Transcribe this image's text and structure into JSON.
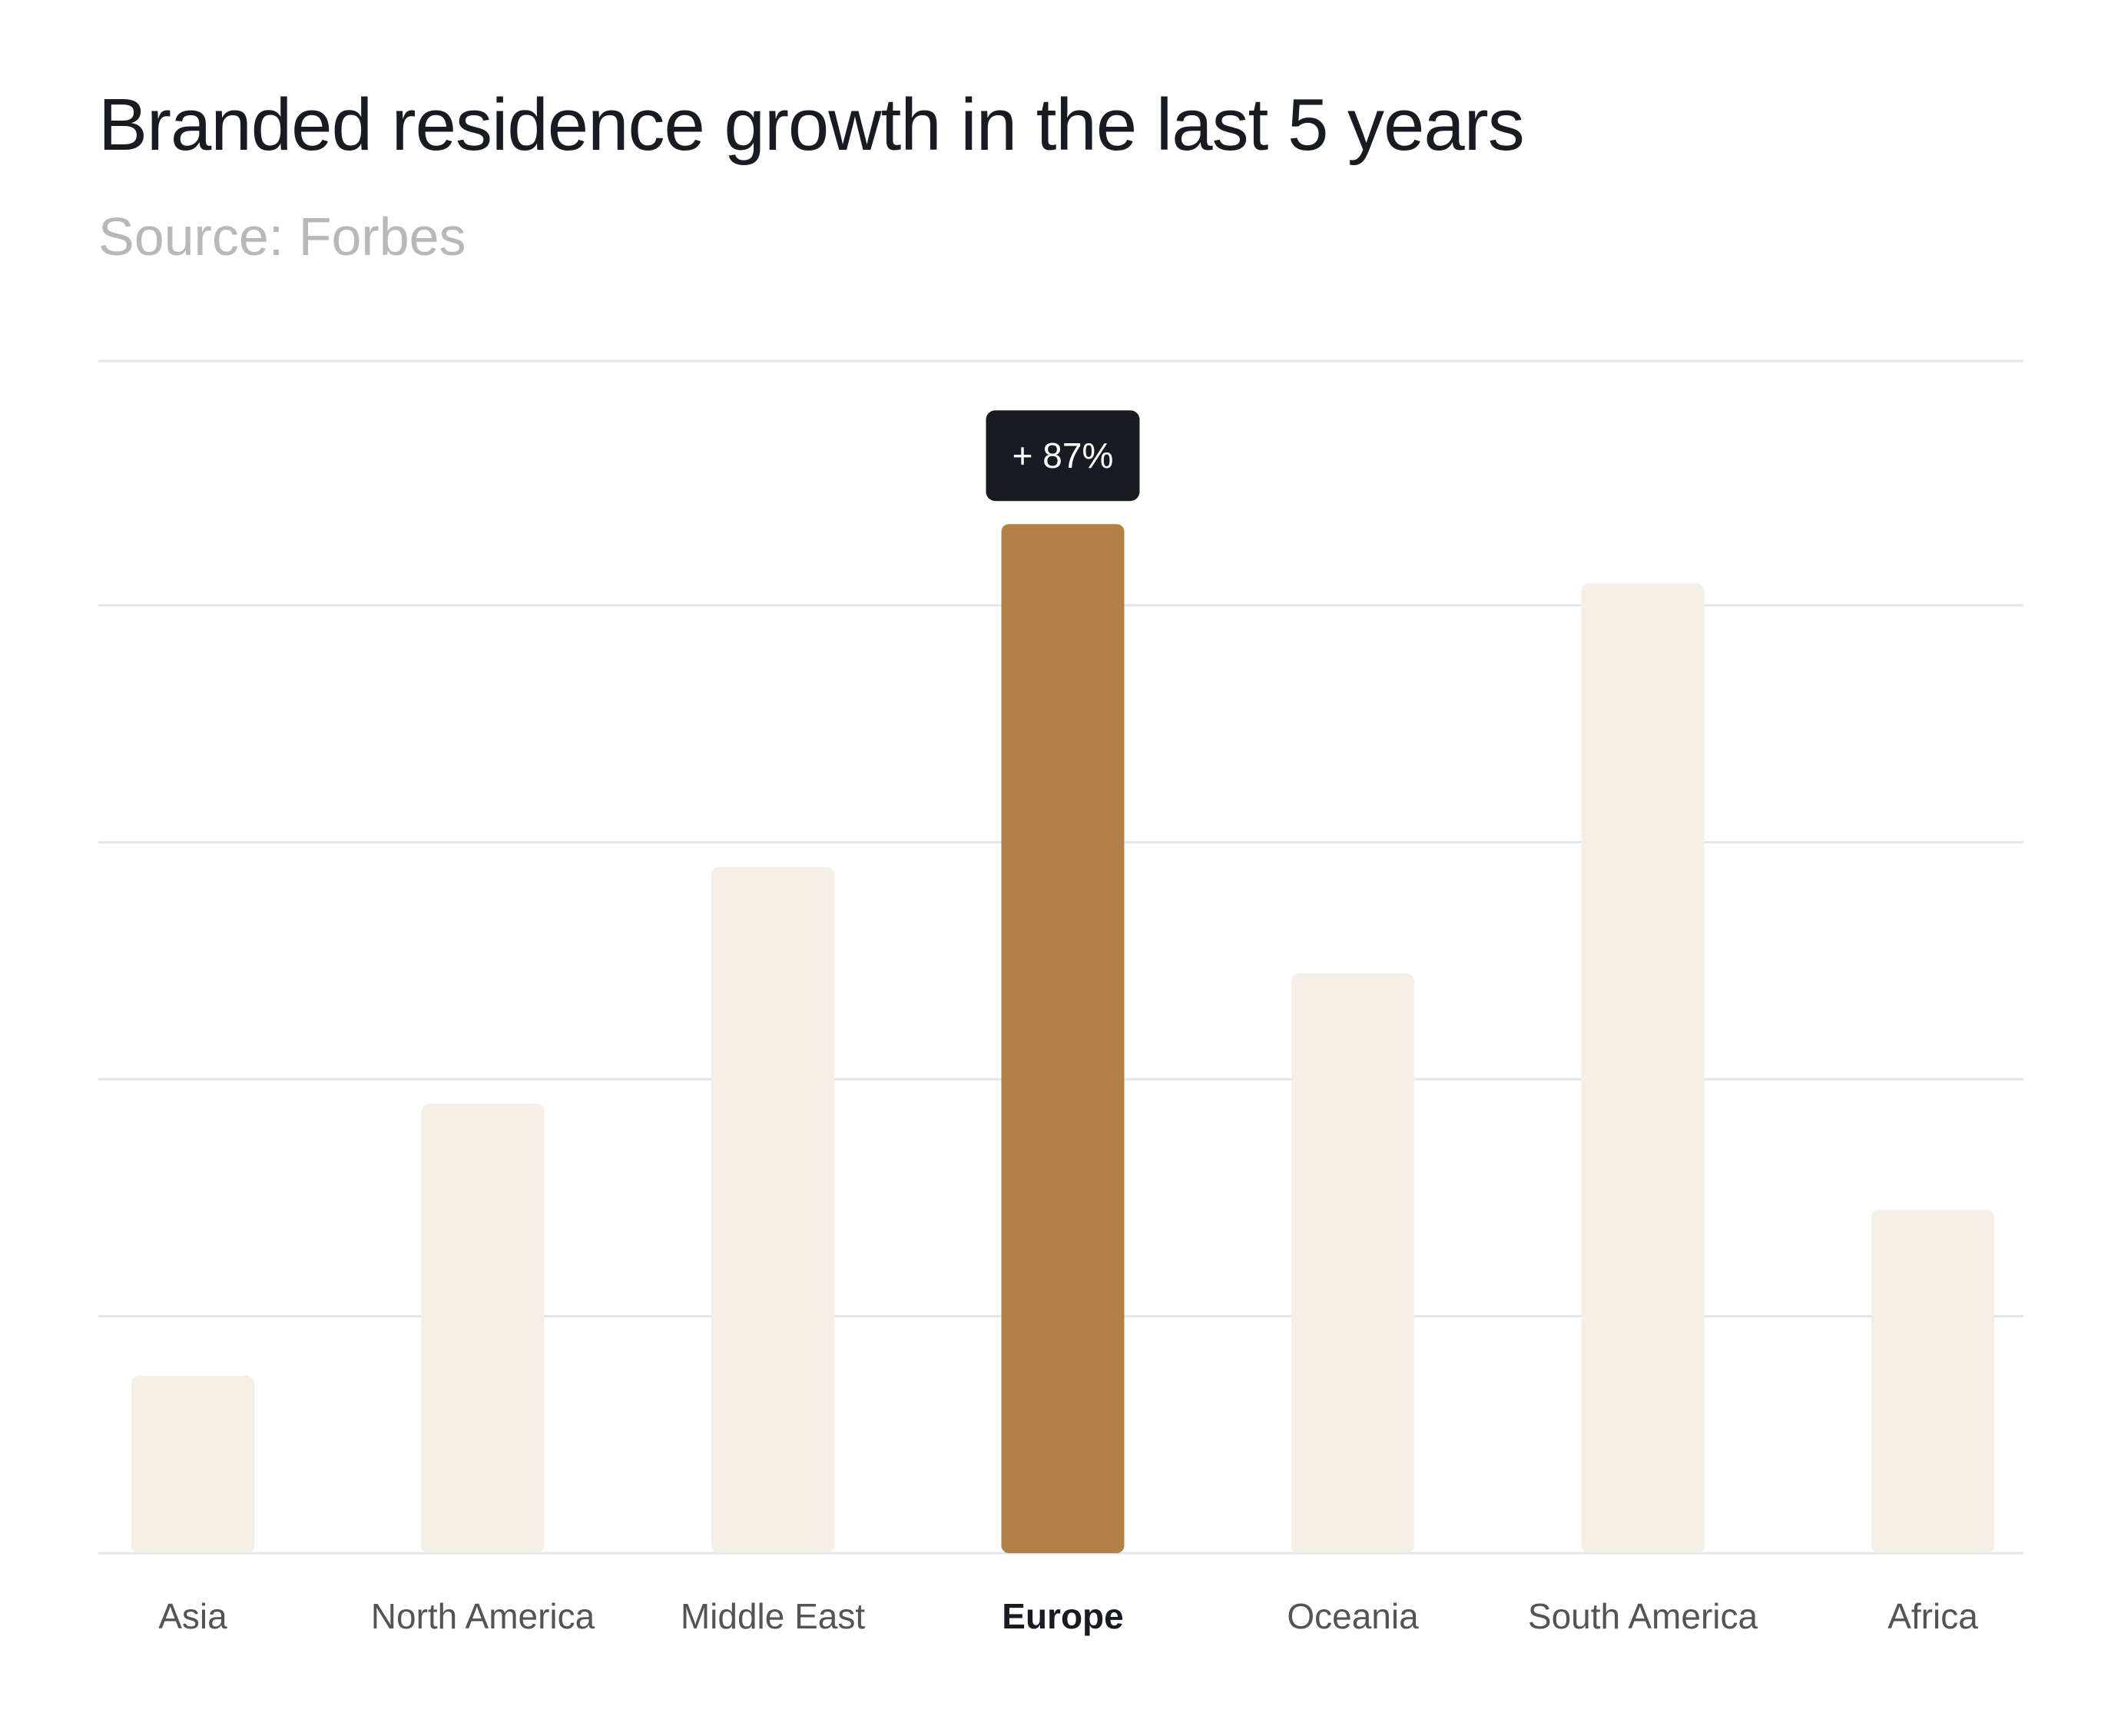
{
  "title": "Branded residence growth in the last 5 years",
  "subtitle": "Source: Forbes",
  "colors": {
    "highlight_bar": "#b3804a",
    "default_bar": "#f5eee7",
    "gridline": "#e3e6ee",
    "tooltip_bg": "#181c22",
    "tooltip_text": "#ffffff",
    "label_text": "#545454",
    "label_text_highlight": "#181c22"
  },
  "chart_data": {
    "type": "bar",
    "title": "Branded residence growth in the last 5 years",
    "subtitle": "Source: Forbes",
    "xlabel": "",
    "ylabel": "",
    "categories": [
      "Asia",
      "North America",
      "Middle East",
      "Europe",
      "Oceania",
      "South America",
      "Africa"
    ],
    "values": [
      15,
      38,
      58,
      87,
      49,
      82,
      29
    ],
    "unit": "%",
    "ylim": [
      0,
      100
    ],
    "grid": true,
    "y_tick_labels_shown": false,
    "highlighted_category": "Europe",
    "highlight_label": "+ 87%"
  }
}
